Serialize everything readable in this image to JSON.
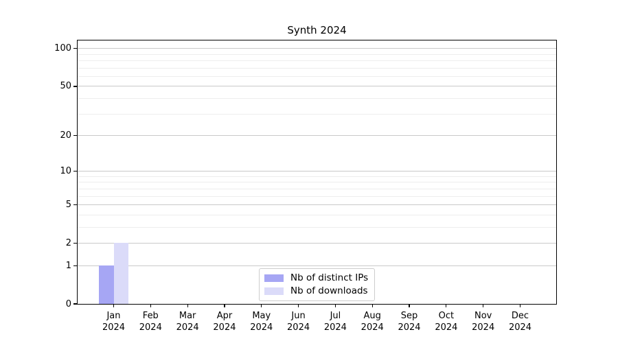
{
  "chart_data": {
    "type": "bar",
    "title": "Synth 2024",
    "categories": [
      {
        "month": "Jan",
        "year": "2024"
      },
      {
        "month": "Feb",
        "year": "2024"
      },
      {
        "month": "Mar",
        "year": "2024"
      },
      {
        "month": "Apr",
        "year": "2024"
      },
      {
        "month": "May",
        "year": "2024"
      },
      {
        "month": "Jun",
        "year": "2024"
      },
      {
        "month": "Jul",
        "year": "2024"
      },
      {
        "month": "Aug",
        "year": "2024"
      },
      {
        "month": "Sep",
        "year": "2024"
      },
      {
        "month": "Oct",
        "year": "2024"
      },
      {
        "month": "Nov",
        "year": "2024"
      },
      {
        "month": "Dec",
        "year": "2024"
      }
    ],
    "series": [
      {
        "name": "Nb of distinct IPs",
        "color": "#a6a6f4",
        "values": [
          1,
          0,
          0,
          0,
          0,
          0,
          0,
          0,
          0,
          0,
          0,
          0
        ]
      },
      {
        "name": "Nb of downloads",
        "color": "#dbdbf9",
        "values": [
          2,
          0,
          0,
          0,
          0,
          0,
          0,
          0,
          0,
          0,
          0,
          0
        ]
      }
    ],
    "xlabel": "",
    "ylabel": "",
    "yscale": "log1p",
    "ylim": [
      0,
      116
    ],
    "yticks_major": [
      0,
      1,
      2,
      5,
      10,
      20,
      50,
      100
    ],
    "yticks_minor": [
      3,
      4,
      6,
      7,
      8,
      9,
      30,
      40,
      60,
      70,
      80,
      90
    ],
    "grid": "horizontal",
    "legend_position": "bottom-center"
  }
}
